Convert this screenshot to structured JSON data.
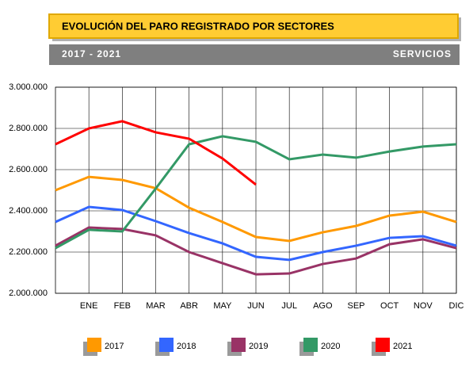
{
  "title": "EVOLUCIÓN DEL PARO REGISTRADO POR SECTORES",
  "subtitle": "2017 - 2021",
  "sector": "SERVICIOS",
  "chart_data": {
    "type": "line",
    "categories": [
      null,
      "ENE",
      "FEB",
      "MAR",
      "ABR",
      "MAY",
      "JUN",
      "JUL",
      "AGO",
      "SEP",
      "OCT",
      "NOV",
      "DIC"
    ],
    "series": [
      {
        "name": "2017",
        "color": "#ff9900",
        "values": [
          2500000,
          2565000,
          2550000,
          2510000,
          2415000,
          2346000,
          2273000,
          2254000,
          2296000,
          2327000,
          2377000,
          2396000,
          2346000
        ]
      },
      {
        "name": "2018",
        "color": "#3366ff",
        "values": [
          2346000,
          2419000,
          2404000,
          2350000,
          2292000,
          2242000,
          2177000,
          2162000,
          2200000,
          2231000,
          2269000,
          2277000,
          2231000
        ]
      },
      {
        "name": "2019",
        "color": "#993366",
        "values": [
          2231000,
          2319000,
          2312000,
          2281000,
          2200000,
          2146000,
          2092000,
          2096000,
          2142000,
          2169000,
          2238000,
          2262000,
          2219000
        ]
      },
      {
        "name": "2020",
        "color": "#339966",
        "values": [
          2219000,
          2308000,
          2300000,
          2508000,
          2723000,
          2762000,
          2735000,
          2650000,
          2673000,
          2658000,
          2688000,
          2712000,
          2723000
        ]
      },
      {
        "name": "2021",
        "color": "#ff0000",
        "values": [
          2723000,
          2800000,
          2835000,
          2781000,
          2750000,
          2654000,
          2527000,
          null,
          null,
          null,
          null,
          null,
          null
        ]
      }
    ],
    "ylim": [
      2000000,
      3000000
    ],
    "yticks": [
      {
        "value": 2000000,
        "label": "2.000.000"
      },
      {
        "value": 2200000,
        "label": "2.200.000"
      },
      {
        "value": 2400000,
        "label": "2.400.000"
      },
      {
        "value": 2600000,
        "label": "2.600.000"
      },
      {
        "value": 2800000,
        "label": "2.800.000"
      },
      {
        "value": 3000000,
        "label": "3.000.000"
      }
    ],
    "grid": true
  }
}
